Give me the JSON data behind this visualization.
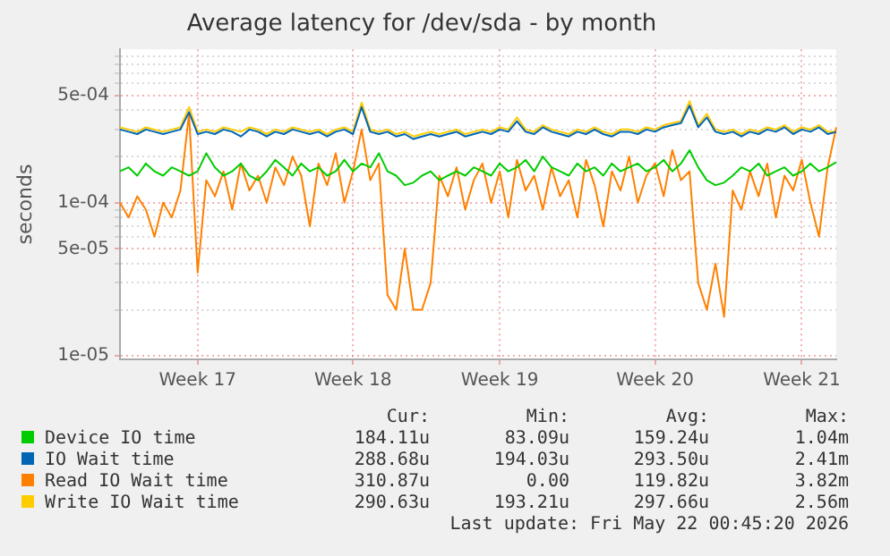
{
  "chart_data": {
    "type": "line",
    "title": "Average latency for /dev/sda - by month",
    "ylabel": "seconds",
    "log": "y",
    "grid": true,
    "legend": "bottom",
    "marker": "none",
    "line_style": "solid",
    "categories": [
      null,
      null,
      null,
      null,
      null,
      null,
      null,
      null,
      null,
      "Week 17",
      null,
      null,
      null,
      null,
      null,
      null,
      null,
      null,
      null,
      null,
      null,
      null,
      null,
      null,
      null,
      null,
      null,
      "Week 18",
      null,
      null,
      null,
      null,
      null,
      null,
      null,
      null,
      null,
      null,
      null,
      null,
      null,
      null,
      null,
      null,
      "Week 19",
      null,
      null,
      null,
      null,
      null,
      null,
      null,
      null,
      null,
      null,
      null,
      null,
      null,
      null,
      null,
      null,
      null,
      "Week 20",
      null,
      null,
      null,
      null,
      null,
      null,
      null,
      null,
      null,
      null,
      null,
      null,
      null,
      null,
      null,
      null,
      "Week 21",
      null,
      null,
      null,
      null
    ],
    "ylim": [
      9.5e-06,
      0.001
    ],
    "yticks": [
      {
        "value": 1e-05,
        "label": "1e-05"
      },
      {
        "value": 2e-05,
        "label": null
      },
      {
        "value": 3e-05,
        "label": null
      },
      {
        "value": 4e-05,
        "label": null
      },
      {
        "value": 5e-05,
        "label": "5e-05"
      },
      {
        "value": 6e-05,
        "label": null
      },
      {
        "value": 7e-05,
        "label": null
      },
      {
        "value": 8e-05,
        "label": null
      },
      {
        "value": 9e-05,
        "label": null
      },
      {
        "value": 0.0001,
        "label": "1e-04"
      },
      {
        "value": 0.0002,
        "label": null
      },
      {
        "value": 0.0003,
        "label": null
      },
      {
        "value": 0.0004,
        "label": null
      },
      {
        "value": 0.0005,
        "label": "5e-04"
      },
      {
        "value": 0.0006,
        "label": null
      },
      {
        "value": 0.0007,
        "label": null
      },
      {
        "value": 0.0008,
        "label": null
      },
      {
        "value": 0.0009,
        "label": null
      }
    ],
    "series": [
      {
        "name": "Device IO time",
        "color": "#00cc00",
        "values": [
          0.00016,
          0.00017,
          0.00015,
          0.00018,
          0.00016,
          0.00015,
          0.00017,
          0.00016,
          0.00015,
          0.00016,
          0.00021,
          0.00017,
          0.00015,
          0.00016,
          0.00018,
          0.00015,
          0.00014,
          0.00016,
          0.00019,
          0.00017,
          0.00015,
          0.00018,
          0.00016,
          0.00017,
          0.00015,
          0.00016,
          0.00019,
          0.00016,
          0.00018,
          0.00017,
          0.00021,
          0.00016,
          0.00015,
          0.00013,
          0.000135,
          0.00015,
          0.00016,
          0.00014,
          0.00015,
          0.00016,
          0.00015,
          0.00017,
          0.00016,
          0.00015,
          0.00018,
          0.00016,
          0.00017,
          0.00019,
          0.00016,
          0.0002,
          0.00017,
          0.00016,
          0.00015,
          0.00018,
          0.00016,
          0.00017,
          0.00015,
          0.00018,
          0.00016,
          0.00017,
          0.00018,
          0.00016,
          0.00017,
          0.00019,
          0.00016,
          0.00018,
          0.00022,
          0.00017,
          0.00014,
          0.00013,
          0.000135,
          0.00015,
          0.00017,
          0.00016,
          0.00018,
          0.00015,
          0.00016,
          0.00017,
          0.00015,
          0.00016,
          0.00018,
          0.00016,
          0.00017,
          0.000184
        ]
      },
      {
        "name": "IO Wait time",
        "color": "#0066b3",
        "values": [
          0.0003,
          0.00029,
          0.00028,
          0.0003,
          0.00029,
          0.00028,
          0.00029,
          0.0003,
          0.00039,
          0.00028,
          0.00029,
          0.00028,
          0.0003,
          0.00029,
          0.00027,
          0.0003,
          0.00029,
          0.00027,
          0.00029,
          0.00028,
          0.0003,
          0.00029,
          0.00028,
          0.00029,
          0.00027,
          0.00029,
          0.0003,
          0.00028,
          0.00042,
          0.00029,
          0.00028,
          0.00029,
          0.00027,
          0.00028,
          0.00026,
          0.00027,
          0.00028,
          0.00027,
          0.00028,
          0.00029,
          0.00027,
          0.00028,
          0.00029,
          0.00028,
          0.0003,
          0.00029,
          0.00034,
          0.00029,
          0.00028,
          0.00031,
          0.00029,
          0.00028,
          0.00027,
          0.00029,
          0.00028,
          0.0003,
          0.00028,
          0.00027,
          0.00029,
          0.00029,
          0.00028,
          0.0003,
          0.00029,
          0.00031,
          0.00032,
          0.00033,
          0.00043,
          0.00031,
          0.00036,
          0.00029,
          0.00028,
          0.00029,
          0.00027,
          0.00029,
          0.00028,
          0.0003,
          0.00029,
          0.00031,
          0.00028,
          0.0003,
          0.00029,
          0.00031,
          0.00028,
          0.000289
        ]
      },
      {
        "name": "Read IO Wait time",
        "color": "#ff8000",
        "values": [
          0.0001,
          8e-05,
          0.00011,
          9e-05,
          6e-05,
          0.0001,
          8e-05,
          0.00012,
          0.00038,
          3.5e-05,
          0.00014,
          0.00011,
          0.00016,
          9e-05,
          0.00018,
          0.00012,
          0.00015,
          0.0001,
          0.00017,
          0.00013,
          0.0002,
          0.00015,
          7e-05,
          0.00018,
          0.00013,
          0.00021,
          0.0001,
          0.00016,
          0.0003,
          0.00014,
          0.00018,
          2.5e-05,
          2e-05,
          5e-05,
          2e-05,
          2e-05,
          3e-05,
          0.00015,
          0.00011,
          0.00017,
          9e-05,
          0.00014,
          0.00018,
          0.0001,
          0.00016,
          8e-05,
          0.00019,
          0.00012,
          0.00015,
          9e-05,
          0.00017,
          0.00011,
          0.00014,
          8e-05,
          0.00019,
          0.00013,
          7e-05,
          0.00016,
          0.00012,
          0.0002,
          0.0001,
          0.00015,
          0.00018,
          0.00011,
          0.00022,
          0.00014,
          0.00016,
          3e-05,
          2e-05,
          4e-05,
          1.8e-05,
          0.00012,
          9e-05,
          0.00016,
          0.00011,
          0.00018,
          8e-05,
          0.00015,
          0.00012,
          0.00019,
          0.0001,
          6e-05,
          0.00017,
          0.00031
        ]
      },
      {
        "name": "Write IO Wait time",
        "color": "#ffcc00",
        "values": [
          0.00031,
          0.0003,
          0.00029,
          0.00031,
          0.0003,
          0.00029,
          0.0003,
          0.00031,
          0.00042,
          0.00029,
          0.0003,
          0.00029,
          0.00031,
          0.0003,
          0.00029,
          0.00031,
          0.0003,
          0.00028,
          0.0003,
          0.00029,
          0.00031,
          0.0003,
          0.00029,
          0.0003,
          0.00028,
          0.0003,
          0.00031,
          0.00029,
          0.00045,
          0.0003,
          0.00029,
          0.0003,
          0.00028,
          0.00029,
          0.00027,
          0.00028,
          0.00029,
          0.00028,
          0.00029,
          0.0003,
          0.00028,
          0.00029,
          0.0003,
          0.00029,
          0.00031,
          0.0003,
          0.00036,
          0.0003,
          0.00029,
          0.00032,
          0.0003,
          0.00029,
          0.00028,
          0.0003,
          0.00029,
          0.00031,
          0.00029,
          0.00028,
          0.0003,
          0.0003,
          0.00029,
          0.00031,
          0.0003,
          0.00032,
          0.00033,
          0.00034,
          0.00046,
          0.00032,
          0.00038,
          0.0003,
          0.00029,
          0.0003,
          0.00028,
          0.0003,
          0.00029,
          0.00031,
          0.0003,
          0.00032,
          0.00029,
          0.00031,
          0.0003,
          0.00032,
          0.00029,
          0.000291
        ]
      }
    ],
    "annotations": [
      "Cur:",
      "Min:",
      "Avg:",
      "Max:",
      "184.11u",
      "83.09u",
      "159.24u",
      "1.04m",
      "288.68u",
      "194.03u",
      "293.50u",
      "2.41m",
      "310.87u",
      "0.00",
      "119.82u",
      "3.82m",
      "290.63u",
      "193.21u",
      "297.66u",
      "2.56m",
      "Last update: Fri May 22 00:45:20 2026"
    ]
  }
}
